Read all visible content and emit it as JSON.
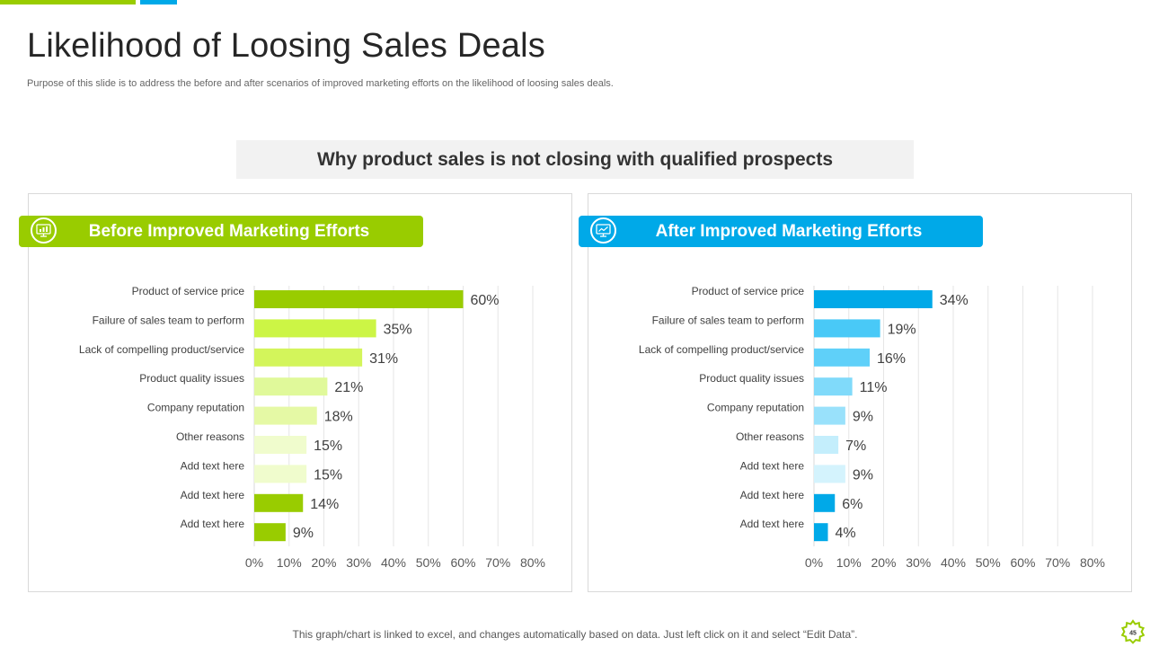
{
  "slide": {
    "title": "Likelihood of Loosing Sales Deals",
    "subtitle": "Purpose of this slide is to address the before and after scenarios of improved marketing efforts on the likelihood of loosing sales deals.",
    "banner": "Why product sales is not closing with qualified prospects",
    "footer": "This graph/chart is linked to excel, and changes automatically based on data. Just left click on it and select “Edit Data”.",
    "page_number": "45",
    "accent_green": "#99cc00",
    "accent_blue": "#00a9e8"
  },
  "panels": {
    "left": {
      "header": "Before Improved Marketing Efforts",
      "icon": "monitor-chart-icon"
    },
    "right": {
      "header": "After Improved Marketing Efforts",
      "icon": "monitor-chart-icon"
    }
  },
  "chart_data": [
    {
      "type": "bar",
      "orientation": "horizontal",
      "title": "Before Improved Marketing Efforts",
      "categories": [
        "Product  of service price",
        "Failure of sales team to perform",
        "Lack of compelling product/service",
        "Product quality issues",
        "Company reputation",
        "Other reasons",
        "Add text here",
        "Add text here",
        "Add text here"
      ],
      "values": [
        60,
        35,
        31,
        21,
        18,
        15,
        15,
        14,
        9
      ],
      "value_labels": [
        "60%",
        "35%",
        "31%",
        "21%",
        "18%",
        "15%",
        "15%",
        "14%",
        "9%"
      ],
      "colors": [
        "#99cc00",
        "#ccf545",
        "#d3f55b",
        "#e0f99a",
        "#e5f9a5",
        "#f0fccd",
        "#f0fccd",
        "#99cc00",
        "#99cc00"
      ],
      "xlim": [
        0,
        80
      ],
      "xticks": [
        "0%",
        "10%",
        "20%",
        "30%",
        "40%",
        "50%",
        "60%",
        "70%",
        "80%"
      ],
      "grid": true,
      "legend": "none"
    },
    {
      "type": "bar",
      "orientation": "horizontal",
      "title": "After Improved Marketing Efforts",
      "categories": [
        "Product  of service price",
        "Failure of sales team to perform",
        "Lack of compelling product/service",
        "Product quality issues",
        "Company reputation",
        "Other reasons",
        "Add text here",
        "Add text here",
        "Add text here"
      ],
      "values": [
        34,
        19,
        16,
        11,
        9,
        7,
        9,
        6,
        4
      ],
      "value_labels": [
        "34%",
        "19%",
        "16%",
        "11%",
        "9%",
        "7%",
        "9%",
        "6%",
        "4%"
      ],
      "colors": [
        "#00a9e8",
        "#49c9f7",
        "#5fd0f9",
        "#80dafa",
        "#99e1fb",
        "#c4eefc",
        "#d4f3fd",
        "#00a9e8",
        "#00a9e8"
      ],
      "xlim": [
        0,
        80
      ],
      "xticks": [
        "0%",
        "10%",
        "20%",
        "30%",
        "40%",
        "50%",
        "60%",
        "70%",
        "80%"
      ],
      "grid": true,
      "legend": "none"
    }
  ]
}
